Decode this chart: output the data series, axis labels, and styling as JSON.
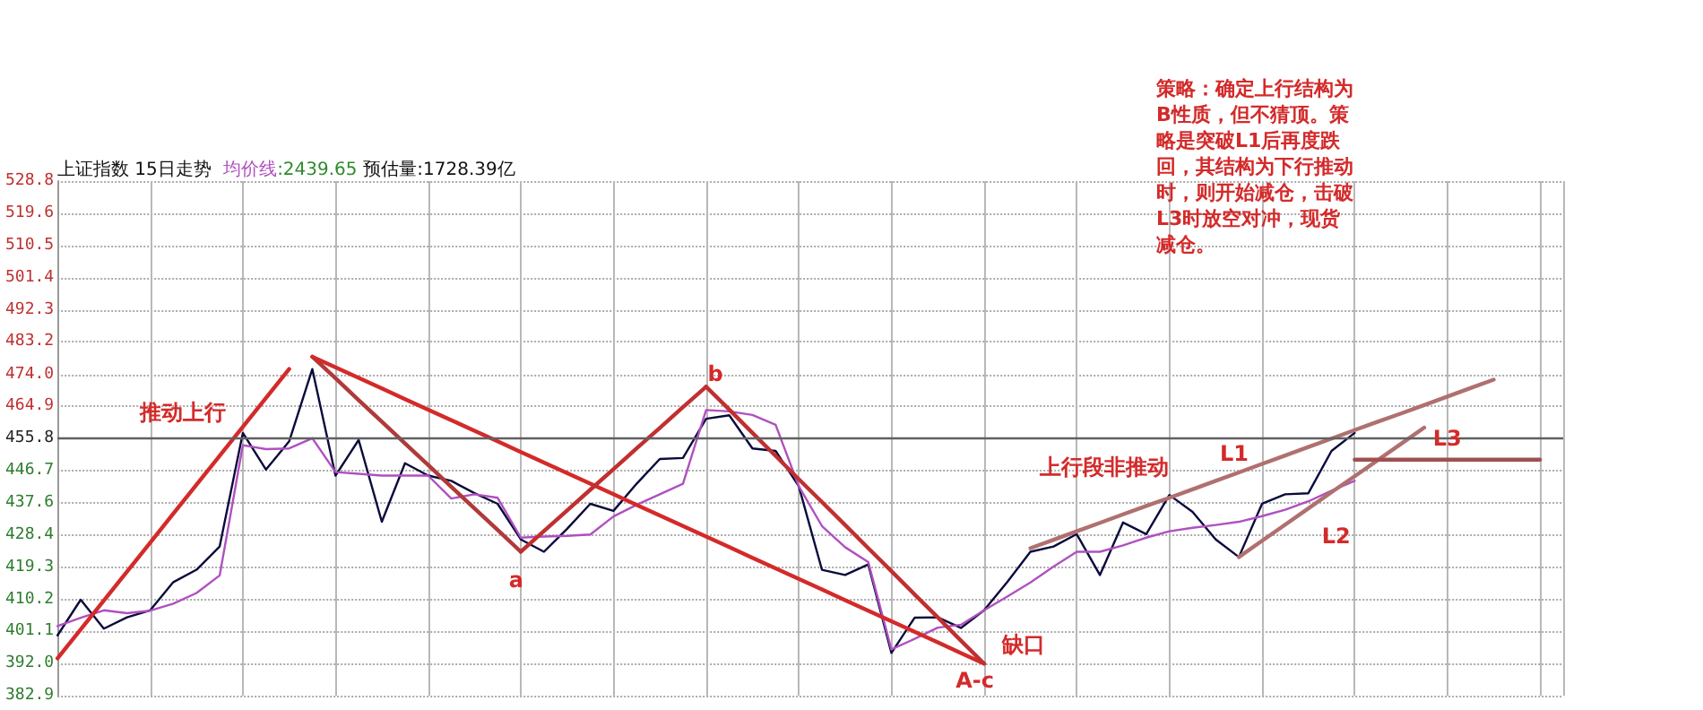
{
  "chart_data": {
    "type": "line",
    "title": "上证指数 15日走势",
    "annotations": [
      ":2439.65",
      "预估量:1728.39亿",
      "策略：确定上行结构为B性质，但不猜顶。策略是突破L1后再度跌回，其结构为下行推动时，则开始减仓，击破L3时放空对冲，现货减仓。",
      "推动上行",
      "a",
      "b",
      "A-c",
      "缺口",
      "上行段非推动",
      "L1",
      "L2",
      "L3"
    ],
    "categories": [
      null,
      null,
      null,
      null,
      null,
      null,
      null,
      null,
      null,
      null,
      null,
      null,
      null,
      null,
      null,
      null,
      null,
      null,
      null,
      null,
      null,
      null,
      null,
      null,
      null,
      null,
      null,
      null,
      null,
      null,
      null,
      null,
      null,
      null,
      null,
      null,
      null,
      null,
      null,
      null,
      null,
      null,
      null,
      null,
      null,
      null,
      null,
      null,
      null,
      null,
      null,
      null,
      null,
      null,
      null,
      null,
      null,
      null,
      null,
      null,
      null,
      null,
      null,
      null,
      null,
      null
    ],
    "ylim": [
      382.9,
      528.8
    ],
    "yticks": [
      382.9,
      {
        "value": 392,
        "label": "392.0"
      },
      401.1,
      410.2,
      419.3,
      428.4,
      437.6,
      446.7,
      455.8,
      464.9,
      {
        "value": 474,
        "label": "474.0"
      },
      483.2,
      492.3,
      501.4,
      510.5,
      519.6,
      528.8
    ],
    "tick_labels": "y",
    "grid": true,
    "legend": false,
    "marker": "none",
    "line_style": "solid",
    "ref_lines": [
      {
        "axis": "y",
        "value": 455.8,
        "label": null,
        "color": "#606060"
      }
    ],
    "series": [
      {
        "color": "#0a0a3c",
        "values": [
          400.0,
          410.1,
          401.9,
          405.1,
          407.1,
          415.1,
          418.6,
          425.2,
          457.4,
          447.0,
          455.0,
          475.5,
          445.3,
          455.4,
          432.2,
          448.8,
          445.3,
          443.8,
          440.3,
          437.3,
          427.2,
          423.7,
          430.2,
          437.3,
          435.3,
          443.0,
          450.0,
          450.3,
          461.4,
          462.4,
          453.0,
          452.3,
          442.3,
          418.6,
          417.1,
          420.1,
          395.0,
          405.0,
          405.1,
          402.1,
          407.1,
          415.1,
          423.7,
          425.2,
          428.7,
          417.1,
          432.0,
          428.7,
          439.8,
          435.0,
          427.2,
          422.2,
          437.3,
          440.0,
          440.3,
          452.3,
          457.4,
          null,
          null,
          null,
          null,
          null,
          null,
          null,
          null,
          null
        ]
      },
      {
        "name": "均价线",
        "color": "#b050c0",
        "values": [
          402.6,
          405.0,
          407.1,
          406.3,
          407.0,
          409.0,
          412.0,
          417.0,
          453.9,
          452.8,
          453.0,
          455.9,
          446.3,
          445.8,
          445.3,
          445.3,
          445.3,
          438.8,
          440.0,
          439.0,
          427.7,
          428.0,
          428.2,
          428.6,
          433.7,
          437.0,
          440.0,
          443.0,
          463.9,
          463.5,
          462.5,
          459.7,
          442.3,
          431.0,
          425.0,
          420.8,
          396.0,
          399.0,
          402.2,
          403.0,
          407.1,
          411.0,
          415.0,
          419.5,
          423.7,
          423.7,
          425.5,
          427.7,
          429.5,
          430.5,
          431.3,
          432.2,
          433.8,
          435.6,
          438.0,
          441.0,
          443.8,
          null,
          null,
          null,
          null,
          null,
          null,
          null,
          null,
          null
        ]
      },
      {
        "color": "#d42a2a",
        "values": [
          393.5,
          401.7,
          409.9,
          418.1,
          426.3,
          434.5,
          442.7,
          450.9,
          459.1,
          467.3,
          475.5,
          null,
          null,
          null,
          null,
          null,
          null,
          null,
          null,
          null,
          null,
          null,
          null,
          null,
          null,
          null,
          null,
          null,
          null,
          null,
          null,
          null,
          null,
          null,
          null,
          null,
          null,
          null,
          null,
          null,
          null,
          null,
          null,
          null,
          null,
          null,
          null,
          null,
          null,
          null,
          null,
          null,
          null,
          null,
          null,
          null,
          null,
          null,
          null,
          null,
          null,
          null,
          null,
          null,
          null,
          null
        ]
      },
      {
        "color": "#b03a3a",
        "values": [
          null,
          null,
          null,
          null,
          null,
          null,
          null,
          null,
          null,
          null,
          null,
          479.0,
          472.9,
          466.7,
          460.6,
          454.4,
          448.3,
          442.1,
          436.0,
          429.9,
          423.7,
          null,
          null,
          null,
          null,
          null,
          null,
          null,
          null,
          null,
          null,
          null,
          null,
          null,
          null,
          null,
          null,
          null,
          null,
          null,
          null,
          null,
          null,
          null,
          null,
          null,
          null,
          null,
          null,
          null,
          null,
          null,
          null,
          null,
          null,
          null,
          null,
          null,
          null,
          null,
          null,
          null,
          null,
          null,
          null,
          null
        ]
      },
      {
        "color": "#d42a2a",
        "values": [
          null,
          null,
          null,
          null,
          null,
          null,
          null,
          null,
          null,
          null,
          null,
          479,
          476,
          473,
          470,
          467,
          464,
          461,
          458,
          455,
          452,
          449,
          446,
          443,
          440,
          437,
          434,
          431,
          428,
          425,
          422,
          419,
          416,
          413,
          410,
          407,
          404,
          401,
          398,
          395,
          392,
          null,
          null,
          null,
          null,
          null,
          null,
          null,
          null,
          null,
          null,
          null,
          null,
          null,
          null,
          null,
          null,
          null,
          null,
          null,
          null,
          null,
          null,
          null,
          null,
          null
        ]
      },
      {
        "color": "#c03030",
        "values": [
          null,
          null,
          null,
          null,
          null,
          null,
          null,
          null,
          null,
          null,
          null,
          null,
          null,
          null,
          null,
          null,
          null,
          null,
          null,
          null,
          423.7,
          429.6,
          435.4,
          441.3,
          447.1,
          453.0,
          458.8,
          464.7,
          470.5,
          null,
          null,
          null,
          null,
          null,
          null,
          null,
          null,
          null,
          null,
          null,
          null,
          null,
          null,
          null,
          null,
          null,
          null,
          null,
          null,
          null,
          null,
          null,
          null,
          null,
          null,
          null,
          null,
          null,
          null,
          null,
          null,
          null,
          null,
          null,
          null,
          null
        ]
      },
      {
        "color": "#c03030",
        "values": [
          null,
          null,
          null,
          null,
          null,
          null,
          null,
          null,
          null,
          null,
          null,
          null,
          null,
          null,
          null,
          null,
          null,
          null,
          null,
          null,
          null,
          null,
          null,
          null,
          null,
          null,
          null,
          null,
          470.5,
          464.0,
          457.4,
          450.9,
          444.3,
          437.8,
          431.3,
          424.7,
          418.2,
          411.6,
          405.1,
          398.5,
          392.0,
          null,
          null,
          null,
          null,
          null,
          null,
          null,
          null,
          null,
          null,
          null,
          null,
          null,
          null,
          null,
          null,
          null,
          null,
          null,
          null,
          null,
          null,
          null,
          null,
          null
        ]
      },
      {
        "color": "#b07070",
        "values": [
          null,
          null,
          null,
          null,
          null,
          null,
          null,
          null,
          null,
          null,
          null,
          null,
          null,
          null,
          null,
          null,
          null,
          null,
          null,
          null,
          null,
          null,
          null,
          null,
          null,
          null,
          null,
          null,
          null,
          null,
          null,
          null,
          null,
          null,
          null,
          null,
          null,
          null,
          null,
          null,
          null,
          null,
          424.7,
          427.1,
          429.5,
          431.9,
          434.3,
          436.7,
          439.0,
          441.4,
          443.8,
          446.2,
          448.6,
          451.0,
          453.4,
          455.8,
          458.2,
          460.6,
          462.9,
          465.3,
          467.7,
          470.1,
          472.5,
          null,
          null,
          null
        ]
      },
      {
        "color": "#b07070",
        "values": [
          null,
          null,
          null,
          null,
          null,
          null,
          null,
          null,
          null,
          null,
          null,
          null,
          null,
          null,
          null,
          null,
          null,
          null,
          null,
          null,
          null,
          null,
          null,
          null,
          null,
          null,
          null,
          null,
          null,
          null,
          null,
          null,
          null,
          null,
          null,
          null,
          null,
          null,
          null,
          null,
          null,
          null,
          null,
          null,
          null,
          null,
          null,
          null,
          null,
          null,
          null,
          422.2,
          426.8,
          431.4,
          436.0,
          440.6,
          445.1,
          449.7,
          454.3,
          458.9,
          null,
          null,
          null,
          null,
          null,
          null
        ]
      },
      {
        "color": "#a05050",
        "values": [
          null,
          null,
          null,
          null,
          null,
          null,
          null,
          null,
          null,
          null,
          null,
          null,
          null,
          null,
          null,
          null,
          null,
          null,
          null,
          null,
          null,
          null,
          null,
          null,
          null,
          null,
          null,
          null,
          null,
          null,
          null,
          null,
          null,
          null,
          null,
          null,
          null,
          null,
          null,
          null,
          null,
          null,
          null,
          null,
          null,
          null,
          null,
          null,
          null,
          null,
          null,
          null,
          null,
          null,
          null,
          null,
          449.8,
          449.8,
          449.8,
          449.8,
          449.8,
          449.8,
          449.8,
          449.8,
          449.8,
          null
        ]
      }
    ]
  }
}
